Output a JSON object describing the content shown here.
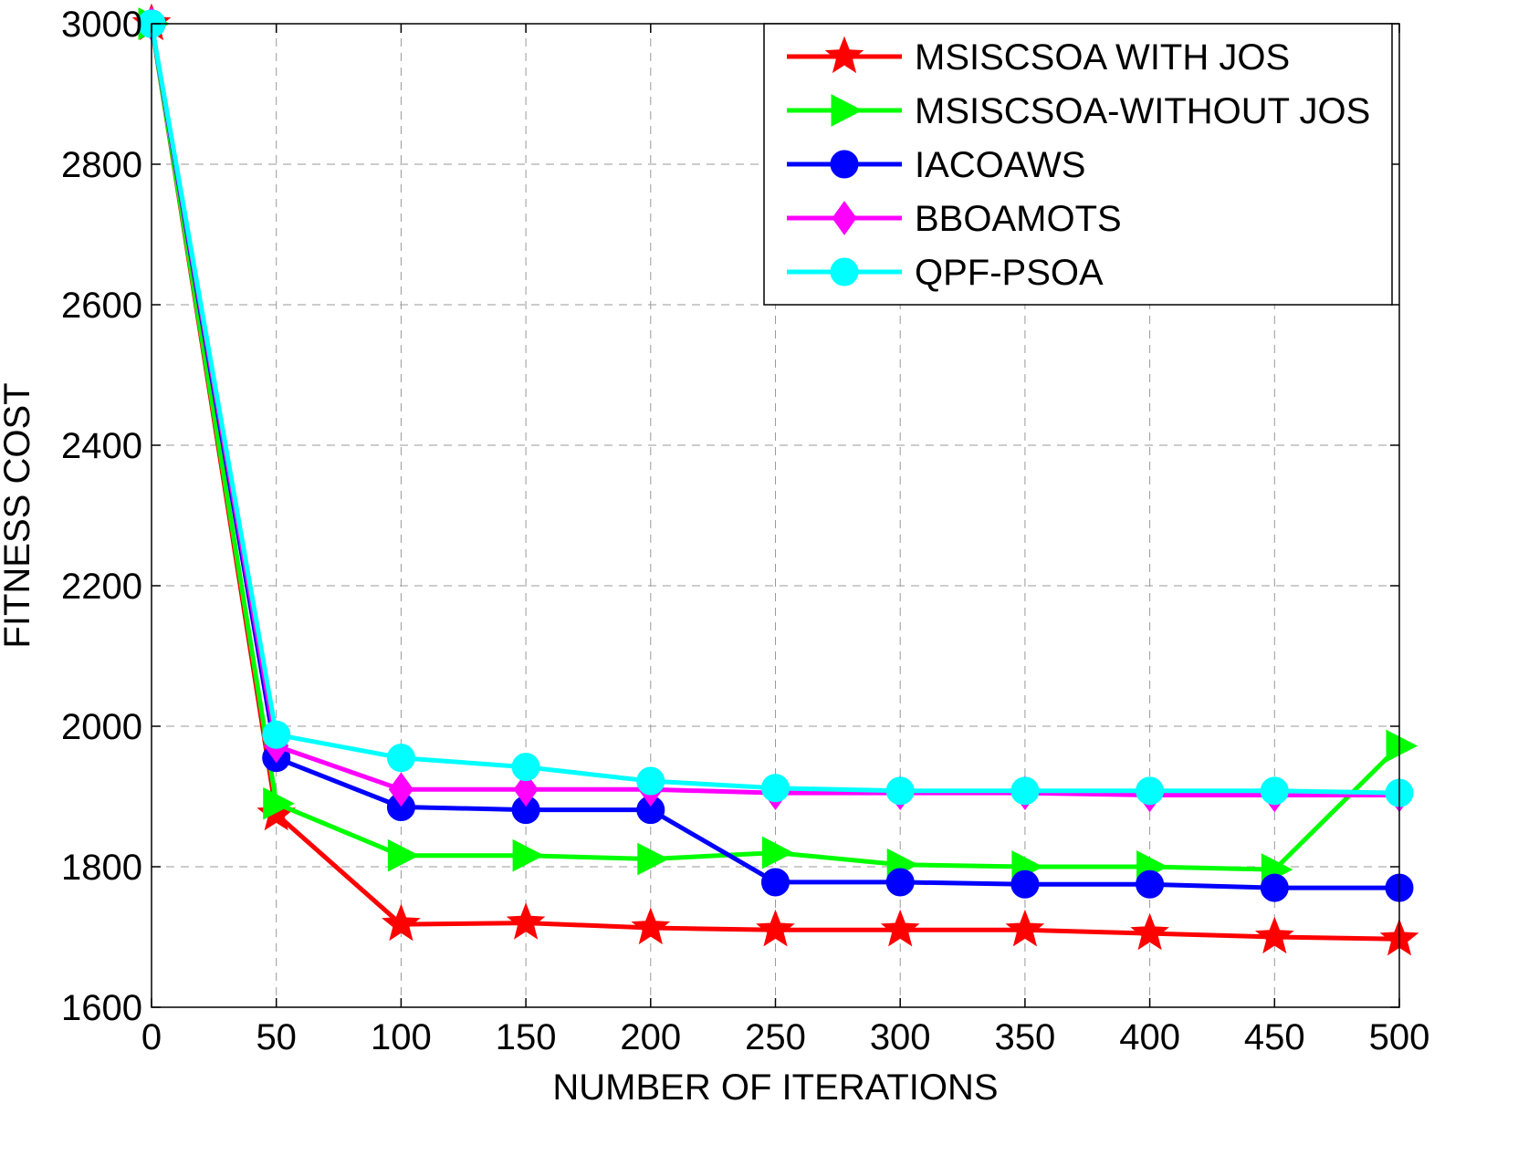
{
  "chart_data": {
    "type": "line",
    "title": "",
    "xlabel": "NUMBER OF ITERATIONS",
    "ylabel": "FITNESS COST",
    "xlim": [
      0,
      500
    ],
    "ylim": [
      1600,
      3000
    ],
    "xticks": [
      0,
      50,
      100,
      150,
      200,
      250,
      300,
      350,
      400,
      450,
      500
    ],
    "yticks": [
      1600,
      1800,
      2000,
      2200,
      2400,
      2600,
      2800,
      3000
    ],
    "grid": true,
    "legend_position": "top-right",
    "x": [
      0,
      50,
      100,
      150,
      200,
      250,
      300,
      350,
      400,
      450,
      500
    ],
    "series": [
      {
        "name": "MSISCSOA WITH JOS",
        "color": "#ff0000",
        "marker": "star",
        "values": [
          3000,
          1875,
          1718,
          1720,
          1713,
          1710,
          1710,
          1710,
          1705,
          1700,
          1697
        ]
      },
      {
        "name": "MSISCSOA-WITHOUT JOS",
        "color": "#00ff00",
        "marker": "triangle-right",
        "values": [
          3000,
          1890,
          1816,
          1816,
          1811,
          1820,
          1803,
          1800,
          1800,
          1796,
          1972
        ]
      },
      {
        "name": "IACOAWS",
        "color": "#0000ff",
        "marker": "circle",
        "values": [
          3000,
          1955,
          1885,
          1881,
          1881,
          1778,
          1778,
          1775,
          1775,
          1770,
          1770
        ]
      },
      {
        "name": "BBOAMOTS",
        "color": "#ff00ff",
        "marker": "diamond",
        "values": [
          3000,
          1972,
          1910,
          1910,
          1910,
          1905,
          1905,
          1905,
          1902,
          1902,
          1902
        ]
      },
      {
        "name": "QPF-PSOA",
        "color": "#00ffff",
        "marker": "circle",
        "values": [
          3000,
          1988,
          1955,
          1942,
          1922,
          1912,
          1908,
          1908,
          1908,
          1908,
          1905
        ]
      }
    ]
  }
}
